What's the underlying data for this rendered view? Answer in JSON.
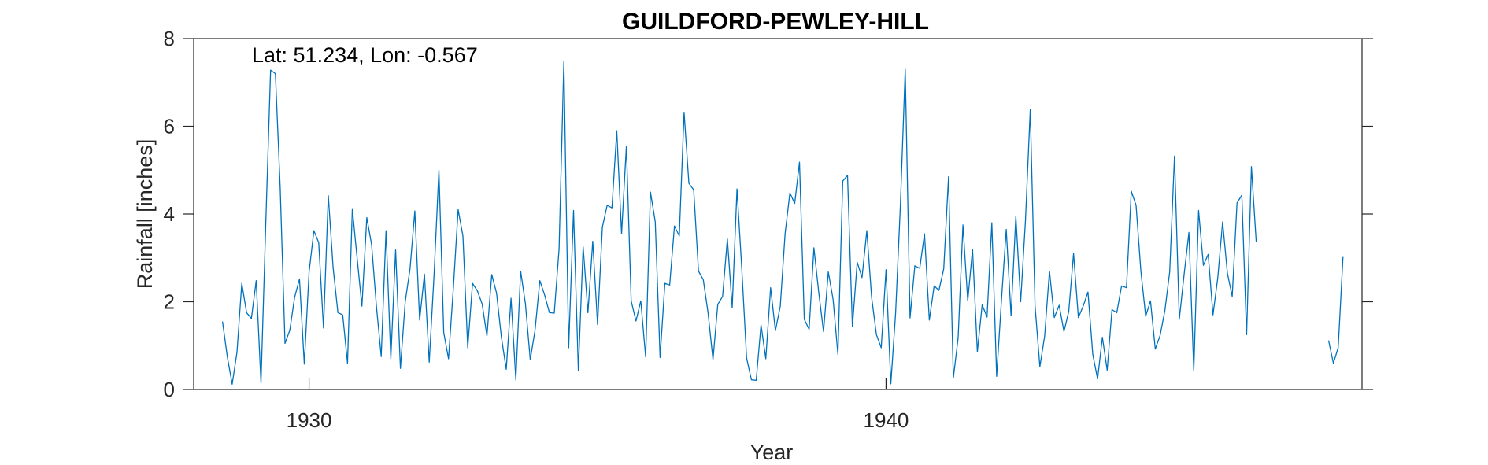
{
  "chart_data": {
    "type": "line",
    "title": "GUILDFORD-PEWLEY-HILL",
    "annotation": "Lat: 51.234, Lon: -0.567",
    "xlabel": "Year",
    "ylabel": "Rainfall [inches]",
    "xlim": [
      1928.0,
      1948.25
    ],
    "ylim": [
      0,
      8
    ],
    "xticks": [
      1930,
      1940
    ],
    "yticks": [
      0,
      2,
      4,
      6,
      8
    ],
    "line_color": "#0072BD",
    "grid": false,
    "series": [
      {
        "start": 1928.5,
        "step": 0.083333,
        "values": [
          1.55,
          0.75,
          0.12,
          0.85,
          2.42,
          1.75,
          1.62,
          2.48,
          0.15,
          3.8,
          7.28,
          7.2,
          4.6,
          1.05,
          1.35,
          2.1,
          2.52,
          0.58,
          2.68,
          3.62,
          3.35,
          1.4,
          4.42,
          2.78,
          1.75,
          1.7,
          0.6,
          4.12,
          3.0,
          1.9,
          3.92,
          3.3,
          1.9,
          0.75,
          3.62,
          0.7,
          3.18,
          0.48,
          2.0,
          2.75,
          4.07,
          1.58,
          2.63,
          0.62,
          2.6,
          5.0,
          1.3,
          0.7,
          2.3,
          4.1,
          3.5,
          0.95,
          2.42,
          2.25,
          1.95,
          1.22,
          2.62,
          2.2,
          1.2,
          0.46,
          2.08,
          0.22,
          2.7,
          1.95,
          0.68,
          1.35,
          2.48,
          2.15,
          1.75,
          1.74,
          3.2,
          7.48,
          0.95,
          4.08,
          0.43,
          3.25,
          1.75,
          3.38,
          1.48,
          3.7,
          4.2,
          4.14,
          5.9,
          3.55,
          5.55,
          2.02,
          1.56,
          2.02,
          0.74,
          4.5,
          3.82,
          0.73,
          2.42,
          2.38,
          3.73,
          3.5,
          6.32,
          4.7,
          4.55,
          2.7,
          2.5,
          1.74,
          0.68,
          1.94,
          2.12,
          3.43,
          1.86,
          4.57,
          2.75,
          0.72,
          0.22,
          0.21,
          1.47,
          0.7,
          2.32,
          1.34,
          1.9,
          3.55,
          4.48,
          4.24,
          5.18,
          1.6,
          1.37,
          3.23,
          2.22,
          1.32,
          2.68,
          2.05,
          0.8,
          4.75,
          4.88,
          1.43,
          2.9,
          2.55,
          3.62,
          2.1,
          1.25,
          0.95,
          2.73,
          0.13,
          1.75,
          4.22,
          7.3,
          1.63,
          2.82,
          2.76,
          3.55,
          1.58,
          2.36,
          2.26,
          2.75,
          4.85,
          0.26,
          1.18,
          3.75,
          2.02,
          3.2,
          0.86,
          1.93,
          1.65,
          3.8,
          0.3,
          2.03,
          3.65,
          1.68,
          3.95,
          2.0,
          3.85,
          6.38,
          1.9,
          0.52,
          1.22,
          2.7,
          1.64,
          1.92,
          1.32,
          1.78,
          3.1,
          1.64,
          1.9,
          2.22,
          0.8,
          0.24,
          1.19,
          0.44,
          1.82,
          1.75,
          2.36,
          2.32,
          4.52,
          4.2,
          2.7,
          1.67,
          2.02,
          0.92,
          1.23,
          1.8,
          2.68,
          5.32,
          1.6,
          2.62,
          3.58,
          0.42,
          4.08,
          2.83,
          3.08,
          1.7,
          2.55,
          3.82,
          2.65,
          2.12,
          4.25,
          4.43,
          1.25,
          5.08,
          3.36
        ]
      },
      {
        "start": 1947.67,
        "step": 0.083333,
        "values": [
          1.12,
          0.6,
          0.95,
          3.02
        ]
      }
    ]
  }
}
